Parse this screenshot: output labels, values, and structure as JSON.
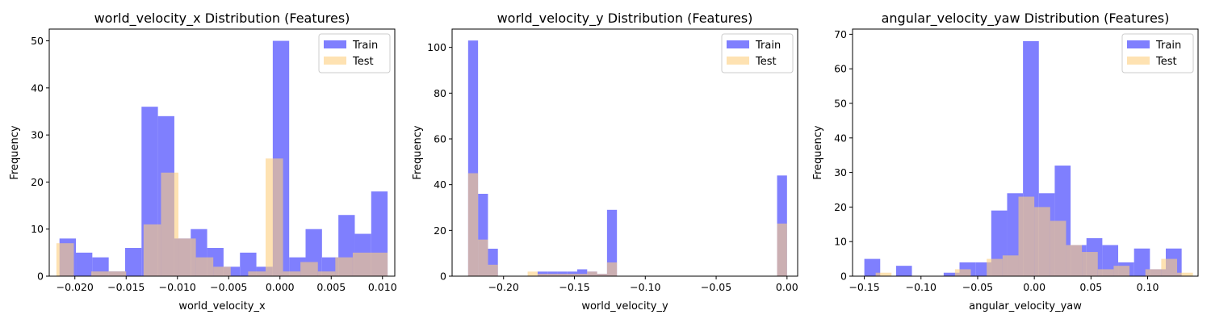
{
  "chart_data": [
    {
      "type": "histogram",
      "title": "world_velocity_x Distribution (Features)",
      "xlabel": "world_velocity_x",
      "ylabel": "Frequency",
      "xlim": [
        -0.0225,
        0.0112
      ],
      "ylim": [
        0,
        52.5
      ],
      "xticks": [
        -0.02,
        -0.015,
        -0.01,
        -0.005,
        0.0,
        0.005,
        0.01
      ],
      "xtick_labels": [
        "−0.020",
        "−0.015",
        "−0.010",
        "−0.005",
        "0.000",
        "0.005",
        "0.010"
      ],
      "yticks": [
        0,
        10,
        20,
        30,
        40,
        50
      ],
      "legend_position": "top-right",
      "series": [
        {
          "name": "Train",
          "color": "#7f7ffe",
          "bins": [
            [
              -0.0215,
              -0.0199,
              8
            ],
            [
              -0.0199,
              -0.0183,
              5
            ],
            [
              -0.0183,
              -0.0167,
              4
            ],
            [
              -0.0167,
              -0.0151,
              1
            ],
            [
              -0.0151,
              -0.0135,
              6
            ],
            [
              -0.0135,
              -0.0119,
              36
            ],
            [
              -0.0119,
              -0.0103,
              34
            ],
            [
              -0.0103,
              -0.0087,
              8
            ],
            [
              -0.0087,
              -0.0071,
              10
            ],
            [
              -0.0071,
              -0.0055,
              6
            ],
            [
              -0.0055,
              -0.0039,
              2
            ],
            [
              -0.0039,
              -0.0023,
              5
            ],
            [
              -0.0023,
              -0.0007,
              2
            ],
            [
              -0.0007,
              0.0009,
              50
            ],
            [
              0.0009,
              0.0025,
              4
            ],
            [
              0.0025,
              0.0041,
              10
            ],
            [
              0.0041,
              0.0057,
              4
            ],
            [
              0.0057,
              0.0073,
              13
            ],
            [
              0.0073,
              0.0089,
              9
            ],
            [
              0.0089,
              0.0105,
              18
            ]
          ]
        },
        {
          "name": "Test",
          "color": "#fecf7f",
          "bins": [
            [
              -0.0218,
              -0.0201,
              7
            ],
            [
              -0.0201,
              -0.0184,
              0
            ],
            [
              -0.0184,
              -0.0167,
              1
            ],
            [
              -0.0167,
              -0.015,
              1
            ],
            [
              -0.015,
              -0.0133,
              0
            ],
            [
              -0.0133,
              -0.0116,
              11
            ],
            [
              -0.0116,
              -0.0099,
              22
            ],
            [
              -0.0099,
              -0.0082,
              8
            ],
            [
              -0.0082,
              -0.0065,
              4
            ],
            [
              -0.0065,
              -0.0048,
              2
            ],
            [
              -0.0048,
              -0.0031,
              0
            ],
            [
              -0.0031,
              -0.0014,
              1
            ],
            [
              -0.0014,
              0.0003,
              25
            ],
            [
              0.0003,
              0.002,
              1
            ],
            [
              0.002,
              0.0037,
              3
            ],
            [
              0.0037,
              0.0054,
              1
            ],
            [
              0.0054,
              0.0071,
              4
            ],
            [
              0.0071,
              0.0088,
              5
            ],
            [
              0.0088,
              0.0105,
              5
            ]
          ]
        }
      ]
    },
    {
      "type": "histogram",
      "title": "world_velocity_y Distribution (Features)",
      "xlabel": "world_velocity_y",
      "ylabel": "Frequency",
      "xlim": [
        -0.2363,
        0.0075
      ],
      "ylim": [
        0,
        108
      ],
      "xticks": [
        -0.2,
        -0.15,
        -0.1,
        -0.05,
        0.0
      ],
      "xtick_labels": [
        "−0.20",
        "−0.15",
        "−0.10",
        "−0.05",
        "0.00"
      ],
      "yticks": [
        0,
        20,
        40,
        60,
        80,
        100
      ],
      "legend_position": "top-right",
      "series": [
        {
          "name": "Train",
          "color": "#7f7ffe",
          "bins": [
            [
              -0.225,
              -0.218,
              103
            ],
            [
              -0.218,
              -0.211,
              36
            ],
            [
              -0.211,
              -0.204,
              12
            ],
            [
              -0.204,
              -0.197,
              0
            ],
            [
              -0.197,
              -0.19,
              0
            ],
            [
              -0.19,
              -0.183,
              0
            ],
            [
              -0.183,
              -0.176,
              0
            ],
            [
              -0.176,
              -0.169,
              2
            ],
            [
              -0.169,
              -0.162,
              2
            ],
            [
              -0.162,
              -0.155,
              2
            ],
            [
              -0.155,
              -0.148,
              2
            ],
            [
              -0.148,
              -0.141,
              3
            ],
            [
              -0.141,
              -0.134,
              2
            ],
            [
              -0.134,
              -0.127,
              1
            ],
            [
              -0.127,
              -0.12,
              29
            ],
            [
              -0.007,
              0.0,
              44
            ]
          ]
        },
        {
          "name": "Test",
          "color": "#fecf7f",
          "bins": [
            [
              -0.225,
              -0.218,
              45
            ],
            [
              -0.218,
              -0.211,
              16
            ],
            [
              -0.211,
              -0.204,
              5
            ],
            [
              -0.204,
              -0.197,
              0
            ],
            [
              -0.197,
              -0.19,
              0
            ],
            [
              -0.19,
              -0.183,
              0
            ],
            [
              -0.183,
              -0.176,
              2
            ],
            [
              -0.176,
              -0.169,
              1
            ],
            [
              -0.169,
              -0.162,
              1
            ],
            [
              -0.162,
              -0.155,
              1
            ],
            [
              -0.155,
              -0.148,
              1
            ],
            [
              -0.148,
              -0.141,
              1
            ],
            [
              -0.141,
              -0.134,
              2
            ],
            [
              -0.134,
              -0.127,
              1
            ],
            [
              -0.127,
              -0.12,
              6
            ],
            [
              -0.007,
              0.0,
              23
            ]
          ]
        }
      ]
    },
    {
      "type": "histogram",
      "title": "angular_velocity_yaw Distribution (Features)",
      "xlabel": "angular_velocity_yaw",
      "ylabel": "Frequency",
      "xlim": [
        -0.1604,
        0.1445
      ],
      "ylim": [
        0,
        71.5
      ],
      "xticks": [
        -0.15,
        -0.1,
        -0.05,
        0.0,
        0.05,
        0.1
      ],
      "xtick_labels": [
        "−0.15",
        "−0.10",
        "−0.05",
        "0.00",
        "0.05",
        "0.10"
      ],
      "yticks": [
        0,
        10,
        20,
        30,
        40,
        50,
        60,
        70
      ],
      "legend_position": "top-right",
      "series": [
        {
          "name": "Train",
          "color": "#7f7ffe",
          "bins": [
            [
              -0.15,
              -0.136,
              5
            ],
            [
              -0.136,
              -0.122,
              0
            ],
            [
              -0.122,
              -0.108,
              3
            ],
            [
              -0.108,
              -0.094,
              0
            ],
            [
              -0.094,
              -0.08,
              0
            ],
            [
              -0.08,
              -0.066,
              1
            ],
            [
              -0.066,
              -0.052,
              4
            ],
            [
              -0.052,
              -0.038,
              4
            ],
            [
              -0.038,
              -0.024,
              19
            ],
            [
              -0.024,
              -0.01,
              24
            ],
            [
              -0.01,
              0.004,
              68
            ],
            [
              0.004,
              0.018,
              24
            ],
            [
              0.018,
              0.032,
              32
            ],
            [
              0.032,
              0.046,
              9
            ],
            [
              0.046,
              0.06,
              11
            ],
            [
              0.06,
              0.074,
              9
            ],
            [
              0.074,
              0.088,
              4
            ],
            [
              0.088,
              0.102,
              8
            ],
            [
              0.102,
              0.116,
              2
            ],
            [
              0.116,
              0.13,
              8
            ]
          ]
        },
        {
          "name": "Test",
          "color": "#fecf7f",
          "bins": [
            [
              -0.14,
              -0.126,
              1
            ],
            [
              -0.126,
              -0.112,
              0
            ],
            [
              -0.112,
              -0.098,
              0
            ],
            [
              -0.098,
              -0.084,
              0
            ],
            [
              -0.084,
              -0.07,
              0
            ],
            [
              -0.07,
              -0.056,
              2
            ],
            [
              -0.056,
              -0.042,
              0
            ],
            [
              -0.042,
              -0.028,
              5
            ],
            [
              -0.028,
              -0.014,
              6
            ],
            [
              -0.014,
              0.0,
              23
            ],
            [
              0.0,
              0.014,
              20
            ],
            [
              0.014,
              0.028,
              16
            ],
            [
              0.028,
              0.042,
              9
            ],
            [
              0.042,
              0.056,
              7
            ],
            [
              0.056,
              0.07,
              2
            ],
            [
              0.07,
              0.084,
              3
            ],
            [
              0.084,
              0.098,
              0
            ],
            [
              0.098,
              0.112,
              2
            ],
            [
              0.112,
              0.126,
              5
            ],
            [
              0.126,
              0.14,
              1
            ]
          ]
        }
      ]
    }
  ]
}
